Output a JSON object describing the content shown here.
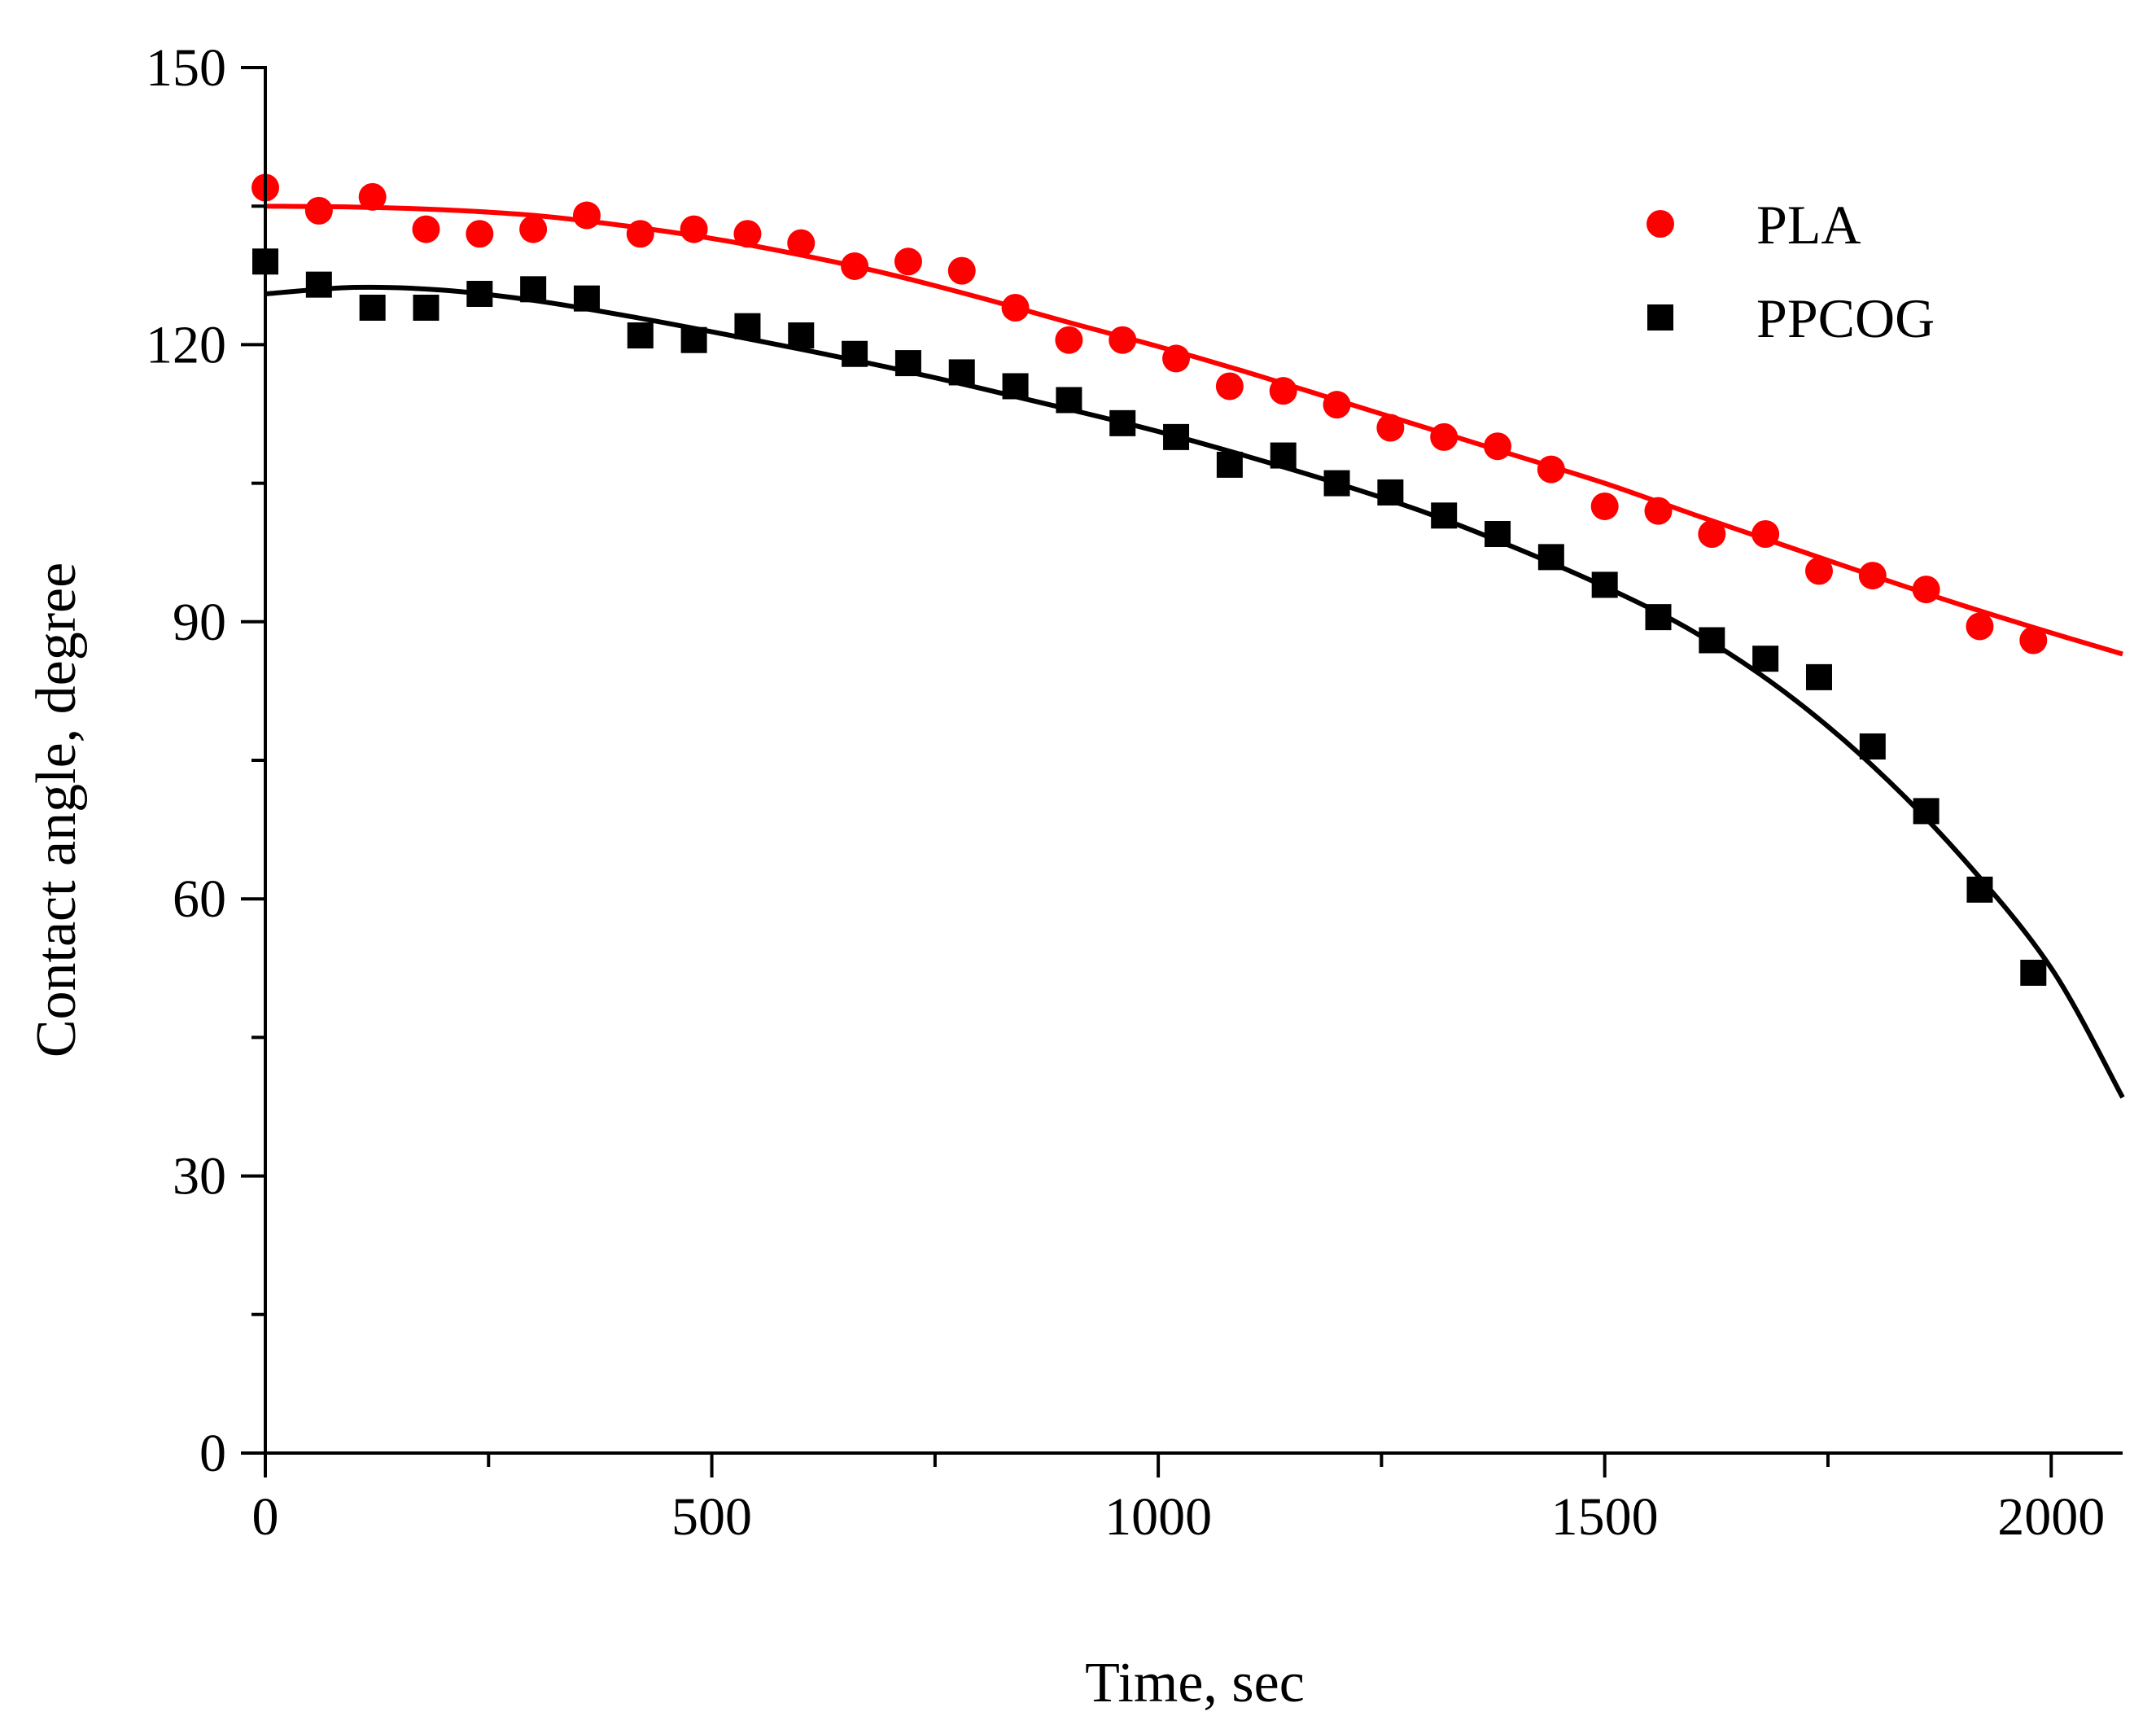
{
  "chart_data": {
    "type": "scatter",
    "title": "",
    "xlabel": "Time, sec",
    "ylabel": "Contact angle, degree",
    "xlim": [
      0,
      2080
    ],
    "ylim": [
      0,
      150
    ],
    "x_ticks": [
      0,
      500,
      1000,
      1500,
      2000
    ],
    "x_tick_labels": [
      "0",
      "500",
      "1000",
      "1500",
      "2000"
    ],
    "y_ticks": [
      0,
      30,
      60,
      90,
      120,
      150
    ],
    "y_tick_labels": [
      "0",
      "30",
      "60",
      "90",
      "120",
      "150"
    ],
    "grid": false,
    "legend_position": "top-right",
    "series": [
      {
        "name": "PLA",
        "marker": "circle",
        "color": "#ff0000",
        "x": [
          0,
          60,
          120,
          180,
          240,
          300,
          360,
          420,
          480,
          540,
          600,
          660,
          720,
          780,
          840,
          900,
          960,
          1020,
          1080,
          1140,
          1200,
          1260,
          1320,
          1380,
          1440,
          1500,
          1560,
          1620,
          1680,
          1740,
          1800,
          1860,
          1920,
          1980
        ],
        "y": [
          137,
          134.5,
          136,
          132.5,
          132,
          132.5,
          134,
          132,
          132.5,
          132,
          131,
          128.5,
          129,
          128,
          124,
          120.5,
          120.5,
          118.5,
          115.5,
          115,
          113.5,
          111,
          110,
          109,
          106.5,
          102.5,
          102,
          99.5,
          99.5,
          95.5,
          95,
          93.5,
          89.5,
          88
        ],
        "fit_x": [
          0,
          100,
          200,
          300,
          400,
          500,
          600,
          700,
          800,
          900,
          1000,
          1100,
          1200,
          1300,
          1400,
          1500,
          1600,
          1700,
          1800,
          1900,
          2000,
          2080
        ],
        "fit_y": [
          135,
          134.9,
          134.6,
          134,
          132.9,
          131.5,
          129.7,
          127.6,
          125.1,
          122.4,
          119.8,
          117,
          114,
          111,
          108,
          105,
          101.6,
          98.3,
          95,
          91.8,
          88.8,
          86.5
        ]
      },
      {
        "name": "PPCOG",
        "marker": "square",
        "color": "#000000",
        "x": [
          0,
          60,
          120,
          180,
          240,
          300,
          360,
          420,
          480,
          540,
          600,
          660,
          720,
          780,
          840,
          900,
          960,
          1020,
          1080,
          1140,
          1200,
          1260,
          1320,
          1380,
          1440,
          1500,
          1560,
          1620,
          1680,
          1740,
          1800,
          1860,
          1920,
          1980
        ],
        "y": [
          129,
          126.5,
          124,
          124,
          125.5,
          126,
          125,
          121,
          120.5,
          122,
          121,
          119,
          118,
          117,
          115.5,
          114,
          111.5,
          110,
          107,
          108,
          105,
          104,
          101.5,
          99.5,
          97,
          94,
          90.5,
          88,
          86,
          84,
          76.5,
          69.5,
          61,
          52
        ],
        "fit_x": [
          0,
          100,
          200,
          300,
          400,
          500,
          600,
          700,
          800,
          900,
          1000,
          1100,
          1200,
          1300,
          1400,
          1500,
          1600,
          1700,
          1800,
          1900,
          2000,
          2080
        ],
        "fit_y": [
          125.5,
          126.2,
          125.9,
          124.8,
          123.2,
          121.4,
          119.5,
          117.5,
          115.3,
          113,
          110.6,
          107.9,
          105,
          101.8,
          98,
          93.8,
          88.9,
          82.5,
          74.4,
          64.5,
          52.5,
          38.5
        ]
      }
    ]
  }
}
